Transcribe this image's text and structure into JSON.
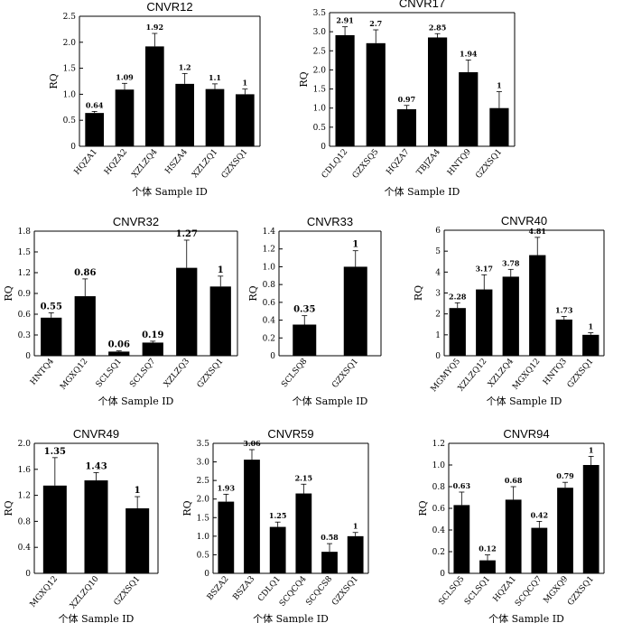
{
  "figure": {
    "xlabel": "个体 Sample ID",
    "ylabel": "RQ"
  },
  "chart_data": [
    {
      "id": "CNVR12",
      "title": "CNVR12",
      "type": "bar",
      "categories": [
        "HQZA1",
        "HQZA2",
        "XZLZQ4",
        "HSZA4",
        "XZLZQ1",
        "GZXSQ1"
      ],
      "values": [
        0.64,
        1.09,
        1.92,
        1.2,
        1.1,
        1
      ],
      "labels": [
        "0.64",
        "1.09",
        "1.92",
        "1.2",
        "1.1",
        "1"
      ],
      "errors": [
        0.03,
        0.12,
        0.25,
        0.2,
        0.1,
        0.1
      ],
      "yticks": [
        "0",
        "0.5",
        "1.0",
        "1.5",
        "2.0",
        "2.5"
      ],
      "ylim": [
        0,
        2.5
      ]
    },
    {
      "id": "CNVR17",
      "title": "CNVR17",
      "type": "bar",
      "categories": [
        "CDLQ12",
        "GZXSQ5",
        "HQZA7",
        "TBJZA4",
        "HNTQ9",
        "GZXSQ1"
      ],
      "values": [
        2.91,
        2.7,
        0.97,
        2.85,
        1.94,
        1
      ],
      "labels": [
        "2.91",
        "2.7",
        "0.97",
        "2.85",
        "1.94",
        "1"
      ],
      "errors": [
        0.22,
        0.35,
        0.1,
        0.1,
        0.32,
        0.43
      ],
      "yticks": [
        "0",
        "0.5",
        "1.0",
        "1.5",
        "2.0",
        "2.5",
        "3.0",
        "3.5"
      ],
      "ylim": [
        0,
        3.5
      ]
    },
    {
      "id": "CNVR32",
      "title": "CNVR32",
      "type": "bar",
      "categories": [
        "HNTQ4",
        "MGXQ12",
        "SCLSQ1",
        "SCLSQ7",
        "XZLZQ3",
        "GZXSQ1"
      ],
      "values": [
        0.55,
        0.86,
        0.06,
        0.19,
        1.27,
        1
      ],
      "labels": [
        "0.55",
        "0.86",
        "0.06",
        "0.19",
        "1.27",
        "1"
      ],
      "errors": [
        0.07,
        0.25,
        0.01,
        0.02,
        0.4,
        0.15
      ],
      "yticks": [
        "0",
        "0.3",
        "0.6",
        "0.9",
        "1.2",
        "1.5",
        "1.8"
      ],
      "ylim": [
        0,
        1.8
      ]
    },
    {
      "id": "CNVR33",
      "title": "CNVR33",
      "type": "bar",
      "categories": [
        "SCLSQ8",
        "GZXSQ1"
      ],
      "values": [
        0.35,
        1
      ],
      "labels": [
        "0.35",
        "1"
      ],
      "errors": [
        0.1,
        0.18
      ],
      "yticks": [
        "0",
        "0.2",
        "0.4",
        "0.6",
        "0.8",
        "1.0",
        "1.2",
        "1.4"
      ],
      "ylim": [
        0,
        1.4
      ]
    },
    {
      "id": "CNVR40",
      "title": "CNVR40",
      "type": "bar",
      "categories": [
        "MGMYQ5",
        "XZLZQ12",
        "XZLZQ4",
        "MGXQ12",
        "HNTQ3",
        "GZXSQ1"
      ],
      "values": [
        2.28,
        3.17,
        3.78,
        4.81,
        1.73,
        1
      ],
      "labels": [
        "2.28",
        "3.17",
        "3.78",
        "4.81",
        "1.73",
        "1"
      ],
      "errors": [
        0.25,
        0.7,
        0.35,
        0.85,
        0.15,
        0.1
      ],
      "yticks": [
        "0",
        "1",
        "2",
        "3",
        "4",
        "5",
        "6"
      ],
      "ylim": [
        0,
        6
      ]
    },
    {
      "id": "CNVR49",
      "title": "CNVR49",
      "type": "bar",
      "categories": [
        "MGXQ12",
        "XZLZQ10",
        "GZXSQ1"
      ],
      "values": [
        1.35,
        1.43,
        1
      ],
      "labels": [
        "1.35",
        "1.43",
        "1"
      ],
      "errors": [
        0.43,
        0.12,
        0.18
      ],
      "yticks": [
        "0",
        "0.4",
        "0.8",
        "1.2",
        "1.6",
        "2.0"
      ],
      "ylim": [
        0,
        2.0
      ]
    },
    {
      "id": "CNVR59",
      "title": "CNVR59",
      "type": "bar",
      "categories": [
        "BSZA2",
        "BSZA3",
        "CDLQ1",
        "SCQCQ4",
        "SCQCS8",
        "GZXSQ1"
      ],
      "values": [
        1.93,
        3.06,
        1.25,
        2.15,
        0.58,
        1
      ],
      "labels": [
        "1.93",
        "3.06",
        "1.25",
        "2.15",
        "0.58",
        "1"
      ],
      "errors": [
        0.2,
        0.27,
        0.13,
        0.25,
        0.22,
        0.1
      ],
      "yticks": [
        "0",
        "0.5",
        "1.0",
        "1.5",
        "2.0",
        "2.5",
        "3.0",
        "3.5"
      ],
      "ylim": [
        0,
        3.5
      ]
    },
    {
      "id": "CNVR94",
      "title": "CNVR94",
      "type": "bar",
      "categories": [
        "SCLSQ5",
        "SCLSQ1",
        "HQZA1",
        "SCQCQ7",
        "MGXQ9",
        "GZXSQ1"
      ],
      "values": [
        0.63,
        0.12,
        0.68,
        0.42,
        0.79,
        1
      ],
      "labels": [
        "0.63",
        "0.12",
        "0.68",
        "0.42",
        "0.79",
        "1"
      ],
      "errors": [
        0.12,
        0.05,
        0.12,
        0.06,
        0.05,
        0.08
      ],
      "yticks": [
        "0",
        "0.2",
        "0.4",
        "0.6",
        "0.8",
        "1.0",
        "1.2"
      ],
      "ylim": [
        0,
        1.2
      ]
    }
  ]
}
